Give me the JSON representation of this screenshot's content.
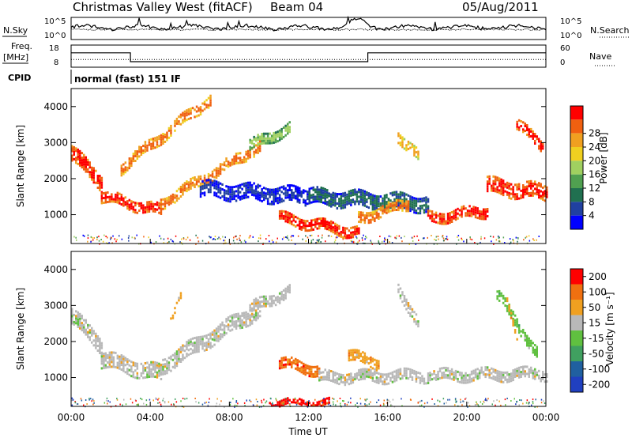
{
  "header": {
    "station": "Christmas Valley West (fitACF)",
    "beam": "Beam 04",
    "date": "05/Aug/2011"
  },
  "strip_panels": {
    "nsky_label": "N.Sky",
    "nsky_ticks": [
      "10^5",
      "10^0"
    ],
    "nsearch_label": "N.Search",
    "nsearch_ticks": [
      "10^5",
      "10^0"
    ],
    "freq_label": "Freq.",
    "freq_unit": "[MHz]",
    "freq_ticks": [
      "18",
      "8"
    ],
    "nave_label": "Nave",
    "nave_ticks": [
      "60",
      "0"
    ],
    "cpid_label": "CPID",
    "cpid_value": "normal (fast) 151 IF",
    "freq_series": {
      "times_h": [
        0,
        3.0,
        3.0,
        15.0,
        15.0,
        24
      ],
      "mhz": [
        14.5,
        14.5,
        10.5,
        10.5,
        14.5,
        14.5
      ]
    }
  },
  "chart_data": [
    {
      "type": "heatmap",
      "name": "power",
      "ylabel": "Slant Range [km]",
      "yticks": [
        "1000",
        "2000",
        "3000",
        "4000"
      ],
      "ylim": [
        200,
        4500
      ],
      "xlim": [
        0,
        24
      ],
      "colorbar_label": "Power [dB]",
      "colorbar_ticks": [
        "4",
        "8",
        "12",
        "16",
        "20",
        "24",
        "28"
      ],
      "colors": [
        "#0000ff",
        "#2040a0",
        "#207050",
        "#50a050",
        "#a0d060",
        "#f0d020",
        "#f0a020",
        "#f06010",
        "#ff0000"
      ],
      "bands": [
        {
          "start_h": 0.0,
          "end_h": 1.5,
          "range0_km": 2700,
          "range1_km": 1900,
          "width_km": 350,
          "level": 8
        },
        {
          "start_h": 1.5,
          "end_h": 4.5,
          "range0_km": 1500,
          "range1_km": 1100,
          "width_km": 300,
          "level": 8
        },
        {
          "start_h": 4.5,
          "end_h": 9.5,
          "range0_km": 1300,
          "range1_km": 2900,
          "width_km": 300,
          "level": 7
        },
        {
          "start_h": 2.5,
          "end_h": 7.0,
          "range0_km": 2300,
          "range1_km": 4200,
          "width_km": 250,
          "level": 7
        },
        {
          "start_h": 9.0,
          "end_h": 11.0,
          "range0_km": 2900,
          "range1_km": 3400,
          "width_km": 300,
          "level": 4
        },
        {
          "start_h": 6.5,
          "end_h": 12.0,
          "range0_km": 1700,
          "range1_km": 1500,
          "width_km": 350,
          "level": 1
        },
        {
          "start_h": 10.5,
          "end_h": 14.5,
          "range0_km": 900,
          "range1_km": 500,
          "width_km": 250,
          "level": 8
        },
        {
          "start_h": 12.0,
          "end_h": 18.0,
          "range0_km": 1500,
          "range1_km": 1300,
          "width_km": 350,
          "level": 2
        },
        {
          "start_h": 14.5,
          "end_h": 17.0,
          "range0_km": 900,
          "range1_km": 1300,
          "width_km": 250,
          "level": 7
        },
        {
          "start_h": 18.0,
          "end_h": 21.0,
          "range0_km": 900,
          "range1_km": 1100,
          "width_km": 250,
          "level": 8
        },
        {
          "start_h": 16.5,
          "end_h": 17.5,
          "range0_km": 3200,
          "range1_km": 2600,
          "width_km": 250,
          "level": 6
        },
        {
          "start_h": 21.0,
          "end_h": 24.0,
          "range0_km": 1800,
          "range1_km": 1600,
          "width_km": 450,
          "level": 8
        },
        {
          "start_h": 22.5,
          "end_h": 23.8,
          "range0_km": 3500,
          "range1_km": 2900,
          "width_km": 200,
          "level": 8
        }
      ]
    },
    {
      "type": "heatmap",
      "name": "velocity",
      "ylabel": "Slant Range [km]",
      "yticks": [
        "1000",
        "2000",
        "3000",
        "4000"
      ],
      "ylim": [
        200,
        4500
      ],
      "xlim": [
        0,
        24
      ],
      "colorbar_label": "Velocity [m s⁻¹]",
      "colorbar_ticks": [
        "200",
        "100",
        "50",
        "15",
        "-15",
        "-50",
        "-100",
        "-200"
      ],
      "colors": [
        "#2040c0",
        "#2060a0",
        "#40a060",
        "#60c040",
        "#b8b8b8",
        "#f0a020",
        "#f07010",
        "#ff0000"
      ],
      "bands": [
        {
          "start_h": 0.0,
          "end_h": 1.5,
          "range0_km": 2700,
          "range1_km": 1900,
          "width_km": 450,
          "level": 4
        },
        {
          "start_h": 1.5,
          "end_h": 4.5,
          "range0_km": 1500,
          "range1_km": 1100,
          "width_km": 400,
          "level": 4
        },
        {
          "start_h": 4.5,
          "end_h": 9.5,
          "range0_km": 1300,
          "range1_km": 2900,
          "width_km": 350,
          "level": 4
        },
        {
          "start_h": 5.0,
          "end_h": 5.5,
          "range0_km": 2600,
          "range1_km": 3200,
          "width_km": 150,
          "level": 5
        },
        {
          "start_h": 9.0,
          "end_h": 11.0,
          "range0_km": 2900,
          "range1_km": 3400,
          "width_km": 300,
          "level": 4
        },
        {
          "start_h": 10.5,
          "end_h": 12.5,
          "range0_km": 1400,
          "range1_km": 1200,
          "width_km": 250,
          "level": 6
        },
        {
          "start_h": 12.5,
          "end_h": 24.0,
          "range0_km": 1000,
          "range1_km": 1100,
          "width_km": 300,
          "level": 4
        },
        {
          "start_h": 14.0,
          "end_h": 15.5,
          "range0_km": 1600,
          "range1_km": 1400,
          "width_km": 200,
          "level": 5
        },
        {
          "start_h": 16.5,
          "end_h": 17.5,
          "range0_km": 3400,
          "range1_km": 2600,
          "width_km": 250,
          "level": 4
        },
        {
          "start_h": 21.5,
          "end_h": 23.5,
          "range0_km": 3300,
          "range1_km": 1700,
          "width_km": 250,
          "level": 3
        },
        {
          "start_h": 22.0,
          "end_h": 22.5,
          "range0_km": 3100,
          "range1_km": 2200,
          "width_km": 150,
          "level": 5
        },
        {
          "start_h": 10.0,
          "end_h": 13.0,
          "range0_km": 300,
          "range1_km": 300,
          "width_km": 150,
          "level": 7
        }
      ]
    }
  ],
  "x_axis": {
    "ticks": [
      "00:00",
      "04:00",
      "08:00",
      "12:00",
      "16:00",
      "20:00",
      "00:00"
    ],
    "label": "Time UT"
  }
}
